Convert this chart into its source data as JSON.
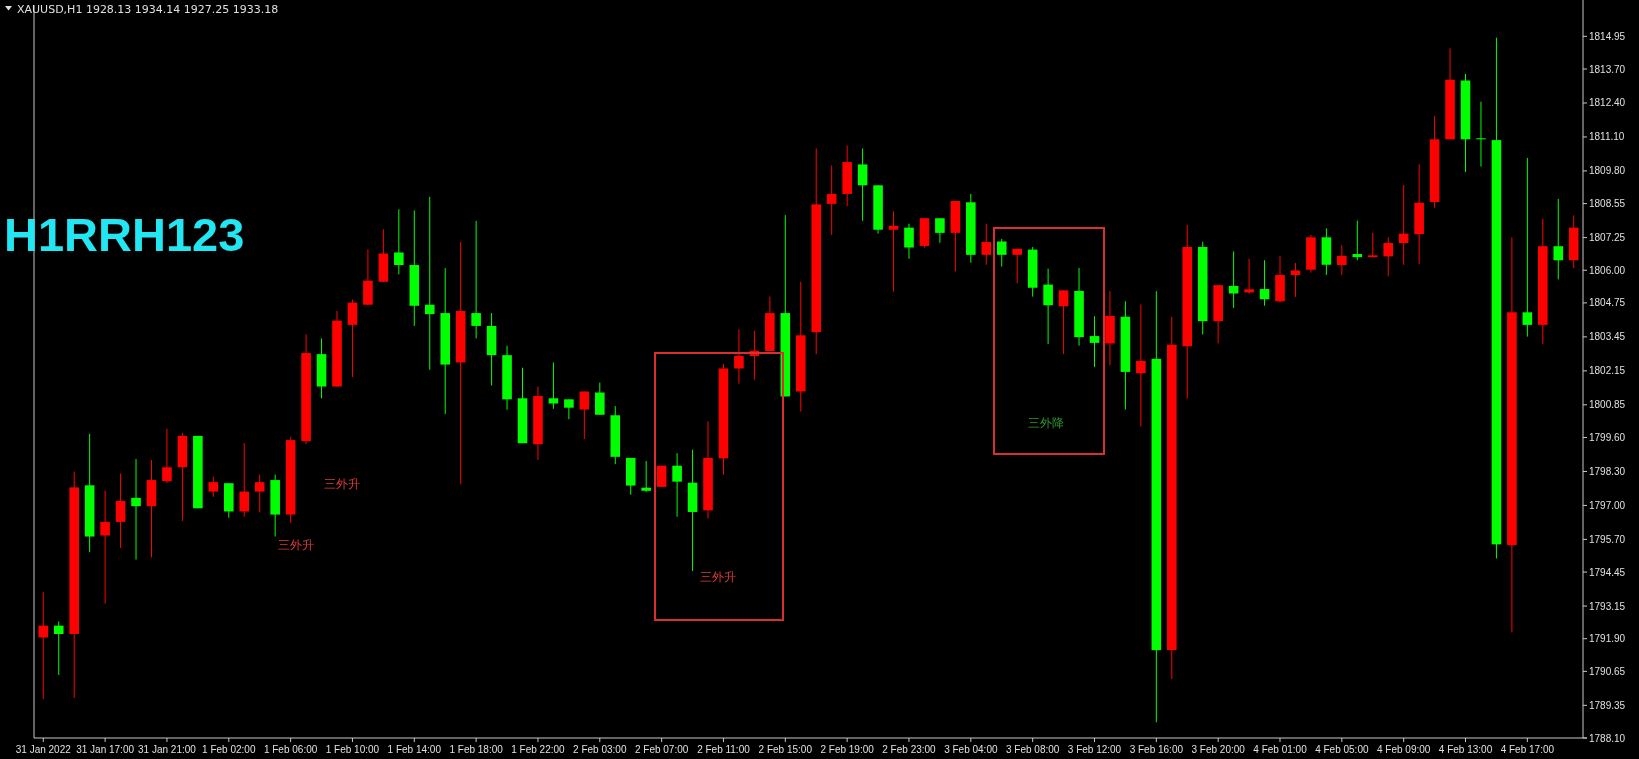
{
  "chart_data": {
    "type": "candlestick",
    "title": "XAUUSD,H1  1928.13 1934.14 1927.25 1933.18",
    "subtitle": "H1RRH123",
    "categories": [
      "31 Jan 2022",
      null,
      null,
      null,
      "31 Jan 17:00",
      null,
      null,
      null,
      "31 Jan 21:00",
      null,
      null,
      null,
      "1 Feb 02:00",
      null,
      null,
      null,
      "1 Feb 06:00",
      null,
      null,
      null,
      "1 Feb 10:00",
      null,
      null,
      null,
      "1 Feb 14:00",
      null,
      null,
      null,
      "1 Feb 18:00",
      null,
      null,
      null,
      "1 Feb 22:00",
      null,
      null,
      null,
      "2 Feb 03:00",
      null,
      null,
      null,
      "2 Feb 07:00",
      null,
      null,
      null,
      "2 Feb 11:00",
      null,
      null,
      null,
      "2 Feb 15:00",
      null,
      null,
      null,
      "2 Feb 19:00",
      null,
      null,
      null,
      "2 Feb 23:00",
      null,
      null,
      null,
      "3 Feb 04:00",
      null,
      null,
      null,
      "3 Feb 08:00",
      null,
      null,
      null,
      "3 Feb 12:00",
      null,
      null,
      null,
      "3 Feb 16:00",
      null,
      null,
      null,
      "3 Feb 20:00",
      null,
      null,
      null,
      "4 Feb 01:00",
      null,
      null,
      null,
      "4 Feb 05:00",
      null,
      null,
      null,
      "4 Feb 09:00",
      null,
      null,
      null,
      "4 Feb 13:00",
      null,
      null,
      null,
      "4 Feb 17:00",
      null,
      null,
      null
    ],
    "ohlc": [
      [
        1791.95,
        1793.68,
        1789.59,
        1792.4
      ],
      [
        1792.4,
        1792.56,
        1790.51,
        1792.08
      ],
      [
        1792.08,
        1798.3,
        1789.63,
        1797.69
      ],
      [
        1797.77,
        1799.74,
        1795.21,
        1795.81
      ],
      [
        1795.85,
        1797.57,
        1793.24,
        1796.37
      ],
      [
        1796.37,
        1798.22,
        1795.37,
        1797.17
      ],
      [
        1797.29,
        1798.78,
        1794.93,
        1796.97
      ],
      [
        1796.97,
        1798.74,
        1795.01,
        1797.97
      ],
      [
        1797.93,
        1799.94,
        1797.85,
        1798.46
      ],
      [
        1798.46,
        1799.78,
        1796.41,
        1799.66
      ],
      [
        1799.66,
        1799.66,
        1796.89,
        1796.89
      ],
      [
        1797.53,
        1798.1,
        1797.33,
        1797.89
      ],
      [
        1797.85,
        1797.85,
        1796.53,
        1796.77
      ],
      [
        1796.77,
        1799.38,
        1796.57,
        1797.53
      ],
      [
        1797.53,
        1798.18,
        1796.73,
        1797.89
      ],
      [
        1797.97,
        1798.18,
        1795.81,
        1796.65
      ],
      [
        1796.65,
        1799.62,
        1796.33,
        1799.5
      ],
      [
        1799.46,
        1803.55,
        1799.34,
        1802.83
      ],
      [
        1802.79,
        1803.39,
        1801.1,
        1801.55
      ],
      [
        1801.55,
        1804.44,
        1801.55,
        1804.07
      ],
      [
        1803.91,
        1804.88,
        1801.91,
        1804.76
      ],
      [
        1804.68,
        1806.8,
        1804.68,
        1805.6
      ],
      [
        1805.56,
        1807.57,
        1805.56,
        1806.64
      ],
      [
        1806.68,
        1808.33,
        1805.84,
        1806.2
      ],
      [
        1806.2,
        1808.29,
        1803.87,
        1804.64
      ],
      [
        1804.68,
        1808.81,
        1802.19,
        1804.32
      ],
      [
        1804.36,
        1806.08,
        1800.5,
        1802.39
      ],
      [
        1802.47,
        1807.08,
        1797.81,
        1804.44
      ],
      [
        1804.36,
        1807.89,
        1803.39,
        1803.87
      ],
      [
        1803.87,
        1804.36,
        1801.59,
        1802.75
      ],
      [
        1802.75,
        1803.11,
        1800.66,
        1801.06
      ],
      [
        1801.1,
        1802.27,
        1799.38,
        1799.38
      ],
      [
        1799.34,
        1801.55,
        1798.74,
        1801.19
      ],
      [
        1801.1,
        1802.47,
        1800.7,
        1800.9
      ],
      [
        1801.06,
        1801.06,
        1800.3,
        1800.74
      ],
      [
        1800.67,
        1801.36,
        1799.54,
        1801.36
      ],
      [
        1801.32,
        1801.7,
        1800.47,
        1800.47
      ],
      [
        1800.45,
        1800.8,
        1798.58,
        1798.86
      ],
      [
        1798.82,
        1798.82,
        1797.41,
        1797.76
      ],
      [
        1797.68,
        1798.7,
        1797.51,
        1797.56
      ],
      [
        1797.71,
        1798.52,
        1797.71,
        1798.52
      ],
      [
        1798.52,
        1799.0,
        1796.57,
        1797.91
      ],
      [
        1797.87,
        1799.13,
        1794.49,
        1796.75
      ],
      [
        1796.81,
        1800.22,
        1796.5,
        1798.82
      ],
      [
        1798.8,
        1802.42,
        1798.17,
        1802.24
      ],
      [
        1802.24,
        1803.74,
        1801.66,
        1802.72
      ],
      [
        1802.72,
        1803.68,
        1801.81,
        1802.92
      ],
      [
        1802.91,
        1804.99,
        1802.91,
        1804.36
      ],
      [
        1804.36,
        1808.11,
        1801.17,
        1801.17
      ],
      [
        1801.36,
        1805.56,
        1800.59,
        1803.51
      ],
      [
        1803.63,
        1810.66,
        1802.79,
        1808.52
      ],
      [
        1808.54,
        1810.01,
        1807.35,
        1808.92
      ],
      [
        1808.92,
        1810.77,
        1808.45,
        1810.14
      ],
      [
        1810.05,
        1810.66,
        1807.89,
        1809.25
      ],
      [
        1809.25,
        1809.25,
        1807.4,
        1807.55
      ],
      [
        1807.55,
        1808.26,
        1805.18,
        1807.7
      ],
      [
        1807.63,
        1807.78,
        1806.44,
        1806.87
      ],
      [
        1806.93,
        1808.0,
        1806.87,
        1807.99
      ],
      [
        1807.99,
        1807.99,
        1807.05,
        1807.43
      ],
      [
        1807.43,
        1808.65,
        1805.96,
        1808.65
      ],
      [
        1808.6,
        1808.92,
        1806.29,
        1806.59
      ],
      [
        1806.59,
        1807.78,
        1806.21,
        1807.08
      ],
      [
        1807.1,
        1807.2,
        1806.14,
        1806.59
      ],
      [
        1806.59,
        1806.82,
        1805.5,
        1806.82
      ],
      [
        1806.79,
        1806.89,
        1804.99,
        1805.33
      ],
      [
        1805.45,
        1806.06,
        1803.18,
        1804.66
      ],
      [
        1804.62,
        1805.23,
        1802.79,
        1805.23
      ],
      [
        1805.21,
        1806.09,
        1803.11,
        1803.44
      ],
      [
        1803.48,
        1804.24,
        1802.3,
        1803.22
      ],
      [
        1803.2,
        1805.2,
        1802.36,
        1804.25
      ],
      [
        1804.22,
        1804.81,
        1800.67,
        1802.11
      ],
      [
        1802.06,
        1804.69,
        1800.02,
        1802.53
      ],
      [
        1802.61,
        1805.2,
        1788.7,
        1791.46
      ],
      [
        1791.46,
        1804.22,
        1790.36,
        1803.15
      ],
      [
        1803.09,
        1807.73,
        1801.09,
        1806.89
      ],
      [
        1806.89,
        1807.09,
        1803.54,
        1804.05
      ],
      [
        1804.05,
        1805.43,
        1803.2,
        1805.43
      ],
      [
        1805.4,
        1806.72,
        1804.56,
        1805.11
      ],
      [
        1805.15,
        1806.45,
        1805.1,
        1805.27
      ],
      [
        1805.28,
        1806.38,
        1804.64,
        1804.89
      ],
      [
        1804.81,
        1806.55,
        1804.76,
        1805.82
      ],
      [
        1805.82,
        1806.28,
        1804.98,
        1805.99
      ],
      [
        1806.02,
        1807.35,
        1805.91,
        1807.26
      ],
      [
        1807.26,
        1807.6,
        1805.82,
        1806.21
      ],
      [
        1806.2,
        1806.96,
        1805.82,
        1806.55
      ],
      [
        1806.62,
        1807.9,
        1806.38,
        1806.5
      ],
      [
        1806.5,
        1807.43,
        1806.5,
        1806.57
      ],
      [
        1806.53,
        1807.26,
        1805.77,
        1807.04
      ],
      [
        1807.04,
        1809.26,
        1806.21,
        1807.4
      ],
      [
        1807.38,
        1810.05,
        1806.24,
        1808.58
      ],
      [
        1808.61,
        1811.91,
        1808.39,
        1811.01
      ],
      [
        1811.01,
        1814.49,
        1811.01,
        1813.29
      ],
      [
        1813.26,
        1813.51,
        1809.76,
        1811.01
      ],
      [
        1811.05,
        1812.45,
        1809.97,
        1811.01
      ],
      [
        1810.98,
        1814.9,
        1794.97,
        1795.51
      ],
      [
        1795.48,
        1807.26,
        1792.14,
        1804.39
      ],
      [
        1804.39,
        1810.3,
        1803.46,
        1803.91
      ],
      [
        1803.91,
        1807.97,
        1803.17,
        1806.92
      ],
      [
        1806.92,
        1808.73,
        1805.65,
        1806.38
      ],
      [
        1806.38,
        1808.1,
        1806.08,
        1807.63
      ]
    ],
    "colors": [
      "#ff0000",
      "#00ff00",
      "#ff0000",
      "#00ff00",
      "#ff0000",
      "#ff0000",
      "#00ff00",
      "#ff0000",
      "#ff0000",
      "#ff0000",
      "#00ff00",
      "#ff0000",
      "#00ff00",
      "#ff0000",
      "#ff0000",
      "#00ff00",
      "#ff0000",
      "#ff0000",
      "#00ff00",
      "#ff0000",
      "#ff0000",
      "#ff0000",
      "#ff0000",
      "#00ff00",
      "#00ff00",
      "#00ff00",
      "#00ff00",
      "#ff0000",
      "#00ff00",
      "#00ff00",
      "#00ff00",
      "#00ff00",
      "#ff0000",
      "#00ff00",
      "#00ff00",
      "#ff0000",
      "#00ff00",
      "#00ff00",
      "#00ff00",
      "#00ff00",
      "#ff0000",
      "#00ff00",
      "#00ff00",
      "#ff0000",
      "#ff0000",
      "#ff0000",
      "#ff0000",
      "#ff0000",
      "#00ff00",
      "#ff0000",
      "#ff0000",
      "#ff0000",
      "#ff0000",
      "#00ff00",
      "#00ff00",
      "#ff0000",
      "#00ff00",
      "#ff0000",
      "#00ff00",
      "#ff0000",
      "#00ff00",
      "#ff0000",
      "#00ff00",
      "#ff0000",
      "#00ff00",
      "#00ff00",
      "#ff0000",
      "#00ff00",
      "#00ff00",
      "#ff0000",
      "#00ff00",
      "#ff0000",
      "#00ff00",
      "#ff0000",
      "#ff0000",
      "#00ff00",
      "#ff0000",
      "#00ff00",
      "#ff0000",
      "#00ff00",
      "#ff0000",
      "#ff0000",
      "#ff0000",
      "#00ff00",
      "#ff0000",
      "#00ff00",
      "#ff0000",
      "#ff0000",
      "#ff0000",
      "#ff0000",
      "#ff0000",
      "#ff0000",
      "#00ff00",
      "#00ff00",
      "#00ff00",
      "#ff0000",
      "#00ff00",
      "#ff0000",
      "#00ff00",
      "#ff0000"
    ],
    "ylim": [
      1788.1,
      1816.15
    ],
    "yticks": [
      {
        "value": 1814.95,
        "label": "1814.95"
      },
      {
        "value": 1813.7,
        "label": "1813.70"
      },
      {
        "value": 1812.4,
        "label": "1812.40"
      },
      {
        "value": 1811.1,
        "label": "1811.10"
      },
      {
        "value": 1809.8,
        "label": "1809.80"
      },
      {
        "value": 1808.55,
        "label": "1808.55"
      },
      {
        "value": 1807.25,
        "label": "1807.25"
      },
      {
        "value": 1806.0,
        "label": "1806.00"
      },
      {
        "value": 1804.75,
        "label": "1804.75"
      },
      {
        "value": 1803.45,
        "label": "1803.45"
      },
      {
        "value": 1802.15,
        "label": "1802.15"
      },
      {
        "value": 1800.85,
        "label": "1800.85"
      },
      {
        "value": 1799.6,
        "label": "1799.60"
      },
      {
        "value": 1798.3,
        "label": "1798.30"
      },
      {
        "value": 1797.0,
        "label": "1797.00"
      },
      {
        "value": 1795.7,
        "label": "1795.70"
      },
      {
        "value": 1794.45,
        "label": "1794.45"
      },
      {
        "value": 1793.15,
        "label": "1793.15"
      },
      {
        "value": 1791.9,
        "label": "1791.90"
      },
      {
        "value": 1790.65,
        "label": "1790.65"
      },
      {
        "value": 1789.35,
        "label": "1789.35"
      },
      {
        "value": 1788.1,
        "label": "1788.10"
      }
    ],
    "annotations": [
      "三外升",
      "三外升",
      "三外升",
      "三外降"
    ]
  }
}
